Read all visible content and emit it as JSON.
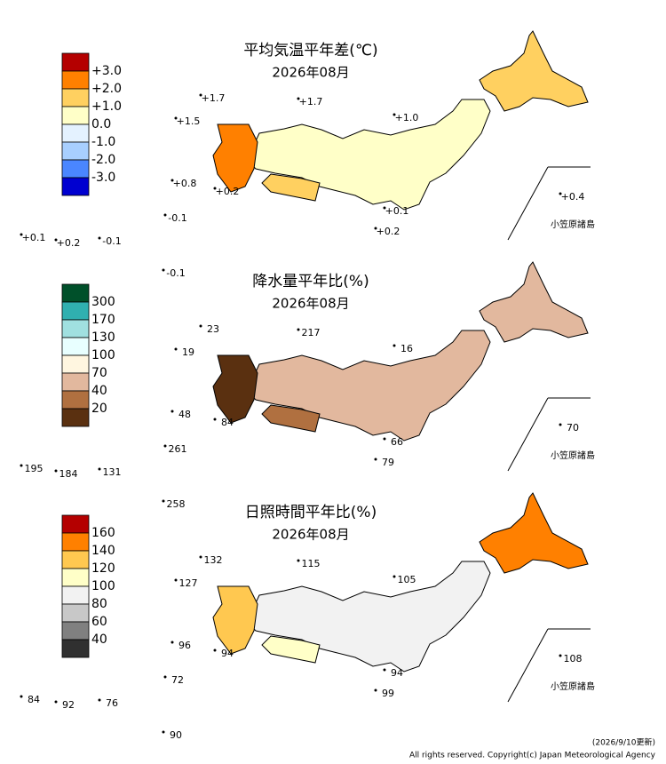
{
  "panels": [
    {
      "title": "平均気温平年差(℃)",
      "subtitle": "2026年08月",
      "legend": {
        "colors": [
          "#b40000",
          "#ff8000",
          "#ffd060",
          "#ffffc8",
          "#e4f2ff",
          "#a8cfff",
          "#4a86ff",
          "#0000d0"
        ],
        "labels": [
          "+3.0",
          "+2.0",
          "+1.0",
          "0.0",
          "-1.0",
          "-2.0",
          "-3.0"
        ]
      },
      "annotations": [
        "+1.7",
        "+1.7",
        "+1.5",
        "+1.0",
        "+0.8",
        "+0.2",
        "+0.1",
        "+0.2",
        "-0.1",
        "+0.1",
        "+0.2",
        "-0.1",
        "-0.1",
        "+0.4"
      ],
      "inset_label": "小笠原諸島"
    },
    {
      "title": "降水量平年比(%)",
      "subtitle": "2026年08月",
      "legend": {
        "colors": [
          "#00502a",
          "#30b0b0",
          "#a0e0e0",
          "#e8ffff",
          "#fff6e0",
          "#e2b89e",
          "#b07040",
          "#5a3010"
        ],
        "labels": [
          "300",
          "170",
          "130",
          "100",
          "70",
          "40",
          "20"
        ]
      },
      "annotations": [
        "23",
        "217",
        "19",
        "16",
        "48",
        "84",
        "66",
        "79",
        "261",
        "195",
        "184",
        "131",
        "258",
        "70"
      ],
      "inset_label": "小笠原諸島"
    },
    {
      "title": "日照時間平年比(%)",
      "subtitle": "2026年08月",
      "legend": {
        "colors": [
          "#b40000",
          "#ff8000",
          "#ffc850",
          "#ffffc8",
          "#f2f2f2",
          "#c8c8c8",
          "#808080",
          "#303030"
        ],
        "labels": [
          "160",
          "140",
          "120",
          "100",
          "80",
          "60",
          "40"
        ]
      },
      "annotations": [
        "132",
        "115",
        "127",
        "105",
        "96",
        "94",
        "94",
        "99",
        "72",
        "84",
        "92",
        "76",
        "90",
        "108"
      ],
      "inset_label": "小笠原諸島"
    }
  ],
  "footer": {
    "updated": "(2026/9/10更新)",
    "copyright": "All rights reserved. Copyright(c) Japan Meteorological Agency"
  }
}
